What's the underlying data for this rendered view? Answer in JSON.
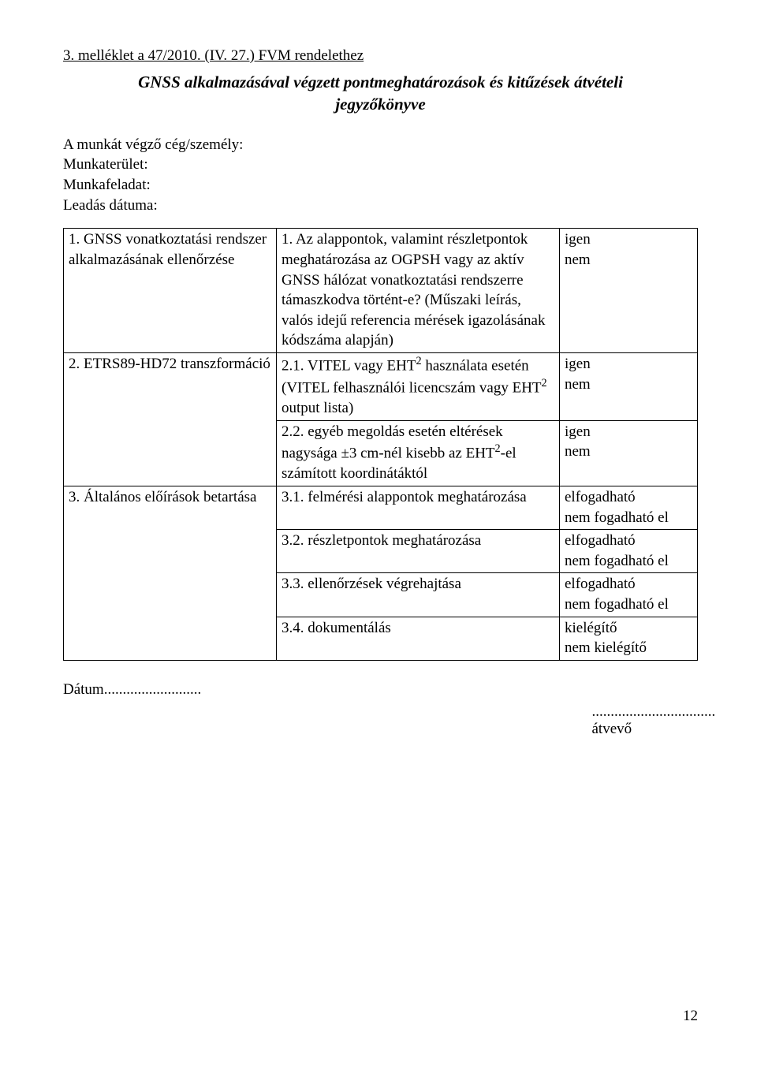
{
  "appendix_header": "3. melléklet a 47/2010. (IV. 27.) FVM rendelethez",
  "main_title_line1": "GNSS alkalmazásával végzett pontmeghatározások és kitűzések átvételi",
  "main_title_line2": "jegyzőkönyve",
  "lead": {
    "l1": "A munkát végző cég/személy:",
    "l2": "Munkaterület:",
    "l3": "Munkafeladat:",
    "l4": "Leadás dátuma:"
  },
  "rows": {
    "r1": {
      "c1": "1. GNSS vonatkoztatási rendszer alkalmazásának ellenőrzése",
      "c2": "1. Az alappontok, valamint részletpontok meghatározása az OGPSH vagy az aktív GNSS hálózat vonatkoztatási rendszerre támaszkodva történt-e? (Műszaki leírás, valós idejű referencia mérések igazolásának kódszáma alapján)",
      "c3a": "igen",
      "c3b": "nem"
    },
    "r2": {
      "c1": "2. ETRS89-HD72 transzformáció",
      "c2_pre": "2.1. VITEL vagy EHT",
      "c2_sup1": "2",
      "c2_mid": " használata esetén (VITEL felhasználói licencszám vagy EHT",
      "c2_sup2": "2",
      "c2_post": " output lista)",
      "c3a": "igen",
      "c3b": "nem"
    },
    "r3": {
      "c2_pre": "2.2. egyéb megoldás esetén eltérések nagysága ±3 cm-nél kisebb az EHT",
      "c2_sup": "2",
      "c2_post": "-el számított koordinátáktól",
      "c3a": "igen",
      "c3b": "nem"
    },
    "r4": {
      "c1": "3. Általános előírások betartása",
      "c2": "3.1. felmérési alappontok meghatározása",
      "c3a": "elfogadható",
      "c3b": "nem fogadható el"
    },
    "r5": {
      "c2": "3.2. részletpontok meghatározása",
      "c3a": "elfogadható",
      "c3b": "nem fogadható el"
    },
    "r6": {
      "c2": "3.3. ellenőrzések végrehajtása",
      "c3a": "elfogadható",
      "c3b": "nem fogadható el"
    },
    "r7": {
      "c2": "3.4. dokumentálás",
      "c3a": "kielégítő",
      "c3b": "nem kielégítő"
    }
  },
  "signature": {
    "date_label": "Dátum..........................",
    "dots": ".................................",
    "recipient": "átvevő"
  },
  "page_number": "12"
}
